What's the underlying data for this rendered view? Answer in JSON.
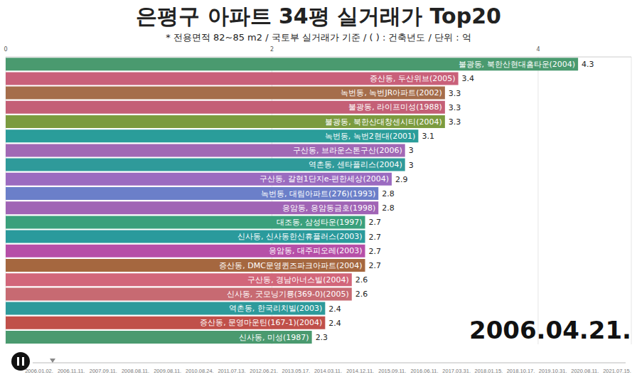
{
  "chart_data": {
    "type": "bar",
    "title": "은평구 아파트 34평 실거래가 Top20",
    "subtitle": "* 전용면적 82~85 m2 / 국토부 실거래가 기준 / ( ) : 건축년도 / 단위 : 억",
    "orientation": "horizontal",
    "categories": [
      "불광동, 북한산현대홈타운(2004)",
      "증산동, 두산위브(2005)",
      "녹번동, 녹번JR아파트(2002)",
      "불광동, 라이프미성(1988)",
      "불광동, 북한산대창센시티(2004)",
      "녹번동, 녹번2현대(2001)",
      "구산동, 브라운스톤구산(2006)",
      "역촌동, 센타플리스(2004)",
      "구산동, 갈현1단지e-편한세상(2004)",
      "녹번동, 대림아파트(276)(1993)",
      "응암동, 응암동금호(1998)",
      "대조동, 삼성타운(1997)",
      "신사동, 신사동한신휴플러스(2003)",
      "응암동, 대주피오레(2003)",
      "증산동, DMC문영퀸즈파크아파트(2004)",
      "구산동, 경남아너스빌(2004)",
      "신사동, 굿모닝기룡(369-0)(2005)",
      "역촌동, 한국리치빌(2003)",
      "증산동, 문영마운틴(167-1)(2004)",
      "신사동, 미성(1987)"
    ],
    "values": [
      4.3,
      3.4,
      3.3,
      3.3,
      3.3,
      3.1,
      3,
      3,
      2.9,
      2.8,
      2.8,
      2.7,
      2.7,
      2.7,
      2.7,
      2.6,
      2.6,
      2.4,
      2.4,
      2.3
    ],
    "colors": [
      "#4a9a6f",
      "#c9607a",
      "#a56d4b",
      "#c45f76",
      "#7b9b3f",
      "#2a9d9a",
      "#a168b5",
      "#2f9a9a",
      "#9b6bc0",
      "#6b7fc9",
      "#a064b5",
      "#3aa07c",
      "#2a9a9c",
      "#b64fa8",
      "#a5673f",
      "#d2667a",
      "#c76a72",
      "#2d9a9b",
      "#c0504a",
      "#4a9a6f"
    ],
    "xlim": [
      0,
      4.7
    ],
    "xticks": [
      0,
      2,
      4
    ],
    "grid": true,
    "data_labels": true
  },
  "timeline": {
    "ticks": [
      "2006.01.02.",
      "2006.11.11.",
      "2007.09.11.",
      "2008.08.11.",
      "2009.08.11.",
      "2010.08.24.",
      "2011.07.13.",
      "2012.06.21.",
      "2013.05.17.",
      "2014.03.11.",
      "2014.12.11.",
      "2015.09.11.",
      "2016.06.11.",
      "2017.03.31.",
      "2018.01.15.",
      "2018.10.17.",
      "2019.10.31.",
      "2020.08.11.",
      "2021.07.15."
    ],
    "date": "2006.04.21."
  }
}
